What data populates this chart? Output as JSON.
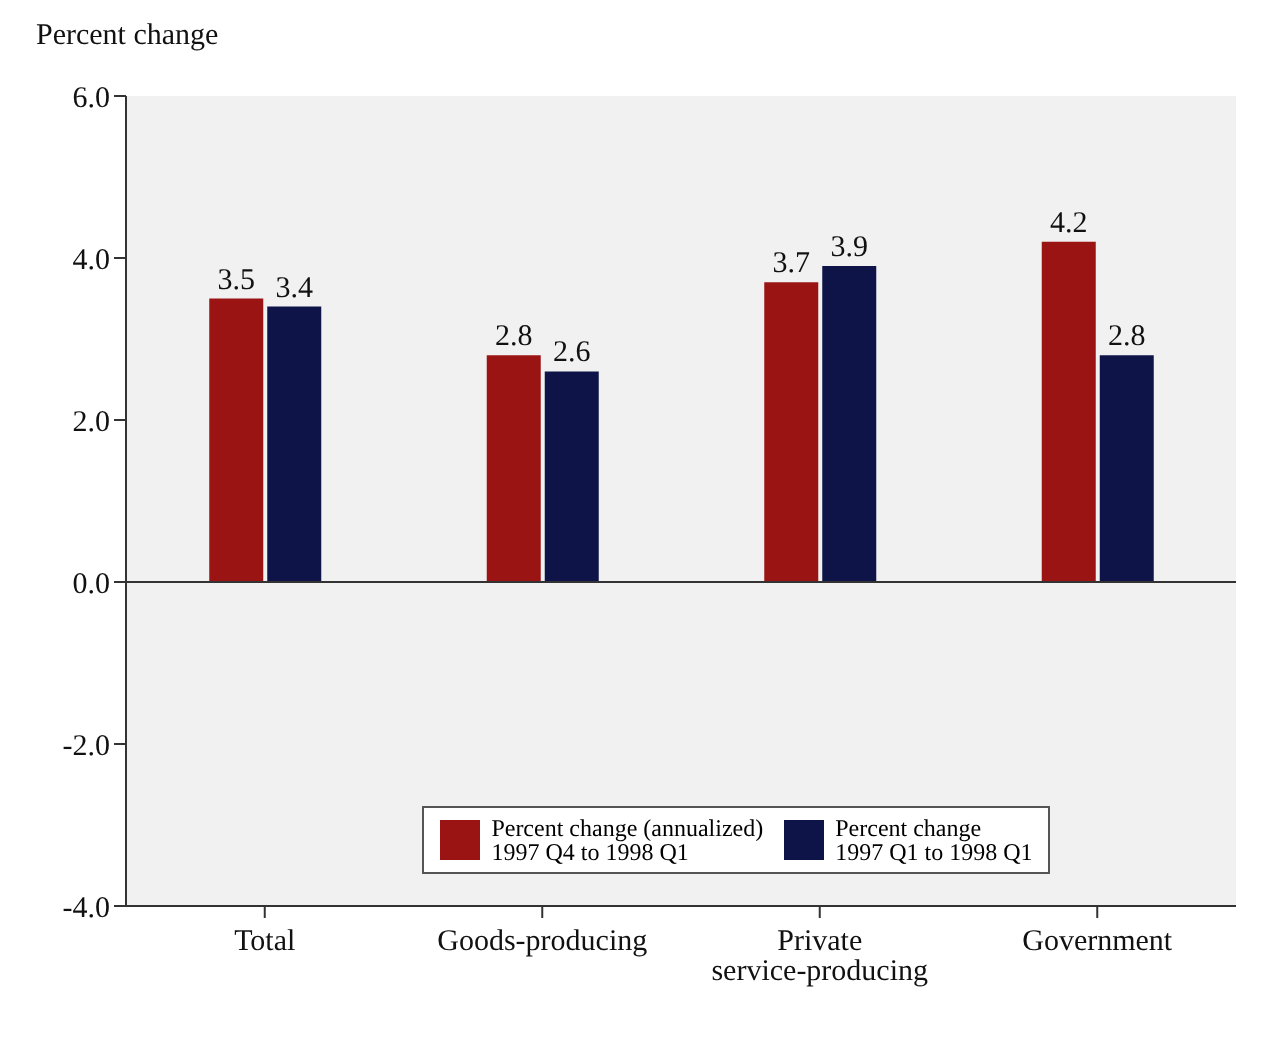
{
  "chart_data": {
    "type": "bar",
    "ylabel": "Percent change",
    "categories": [
      "Total",
      "Goods-producing",
      "Private service-producing",
      "Government"
    ],
    "series": [
      {
        "name": "Percent change (annualized)\n1997 Q4 to 1998 Q1",
        "color": "#9b1414",
        "values": [
          3.5,
          2.8,
          3.7,
          4.2
        ]
      },
      {
        "name": "Percent change\n1997 Q1 to 1998 Q1",
        "color": "#0e1448",
        "values": [
          3.4,
          2.6,
          3.9,
          2.8
        ]
      }
    ],
    "ylim": [
      -4,
      6
    ],
    "yticks": [
      {
        "value": -4,
        "label": "-4.0"
      },
      {
        "value": -2,
        "label": "-2.0"
      },
      {
        "value": 0,
        "label": "0.0"
      },
      {
        "value": 2,
        "label": "2.0"
      },
      {
        "value": 4,
        "label": "4.0"
      },
      {
        "value": 6,
        "label": "6.0"
      }
    ],
    "ref_lines": [
      {
        "axis": "y",
        "value": 0,
        "color": "#333333"
      }
    ],
    "data_labels": true,
    "grid": false,
    "legend": "bottom"
  }
}
